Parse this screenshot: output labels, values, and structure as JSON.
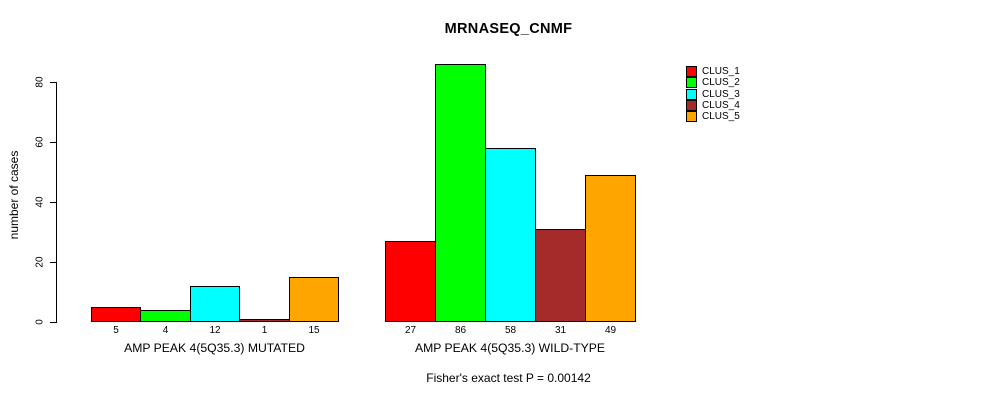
{
  "chart_data": {
    "type": "bar",
    "title": "MRNASEQ_CNMF",
    "ylabel": "number of cases",
    "xlabel": "",
    "yticks": [
      0,
      20,
      40,
      60,
      80
    ],
    "ylim": [
      0,
      86
    ],
    "grid": false,
    "legend_position": "top-right",
    "legend": [
      "CLUS_1",
      "CLUS_2",
      "CLUS_3",
      "CLUS_4",
      "CLUS_5"
    ],
    "series_colors": [
      "#ff0000",
      "#00ff00",
      "#00ffff",
      "#a52a2a",
      "#ffa500"
    ],
    "groups": [
      {
        "label": "AMP PEAK 4(5Q35.3) MUTATED",
        "values": [
          5,
          4,
          12,
          1,
          15
        ]
      },
      {
        "label": "AMP PEAK 4(5Q35.3) WILD-TYPE",
        "values": [
          27,
          86,
          58,
          31,
          49
        ]
      }
    ],
    "annotation": "Fisher's exact test P = 0.00142",
    "axis_color": "#000000",
    "background_color": "#ffffff"
  }
}
